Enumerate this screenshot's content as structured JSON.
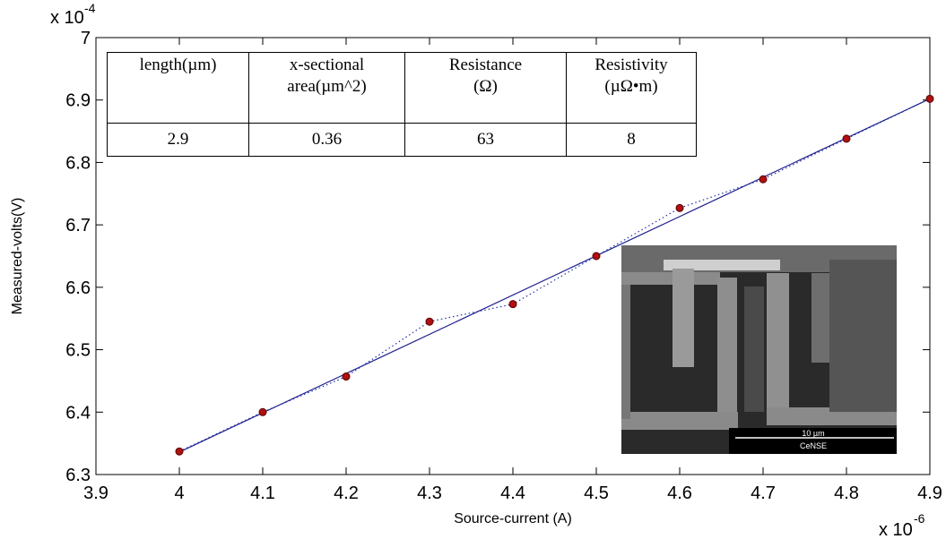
{
  "chart_data": {
    "type": "scatter",
    "x_label": "Source-current (A)",
    "y_label": "Measured-volts(V)",
    "x_exponent": {
      "base": "x 10",
      "power": "-6"
    },
    "y_exponent": {
      "base": "x 10",
      "power": "-4"
    },
    "xlim": [
      3.9,
      4.9
    ],
    "ylim": [
      6.3,
      7
    ],
    "xticks": [
      3.9,
      4,
      4.1,
      4.2,
      4.3,
      4.4,
      4.5,
      4.6,
      4.7,
      4.8,
      4.9
    ],
    "yticks": [
      6.3,
      6.4,
      6.5,
      6.6,
      6.7,
      6.8,
      6.9,
      7
    ],
    "x": [
      4,
      4.1,
      4.2,
      4.3,
      4.4,
      4.5,
      4.6,
      4.7,
      4.8,
      4.9
    ],
    "series": [
      {
        "color": "#b01010",
        "line_color": "#1f2f9f",
        "values": [
          6.337,
          6.4,
          6.457,
          6.545,
          6.573,
          6.65,
          6.727,
          6.773,
          6.838,
          6.902
        ]
      }
    ],
    "fit": {
      "color": "#1f1f8f",
      "x": [
        4,
        4.9
      ],
      "values": [
        6.336,
        6.902
      ]
    },
    "grid": false
  },
  "table": {
    "headers": [
      [
        "length(µm)"
      ],
      [
        "x-sectional",
        "area(µm^2)"
      ],
      [
        "Resistance",
        "(Ω)"
      ],
      [
        "Resistivity",
        "(µΩ•m)"
      ]
    ],
    "rows": [
      [
        2.9,
        0.36,
        63,
        8
      ]
    ]
  },
  "inset_image": {
    "scale_bar": "10 µm",
    "label": "CeNSE"
  }
}
